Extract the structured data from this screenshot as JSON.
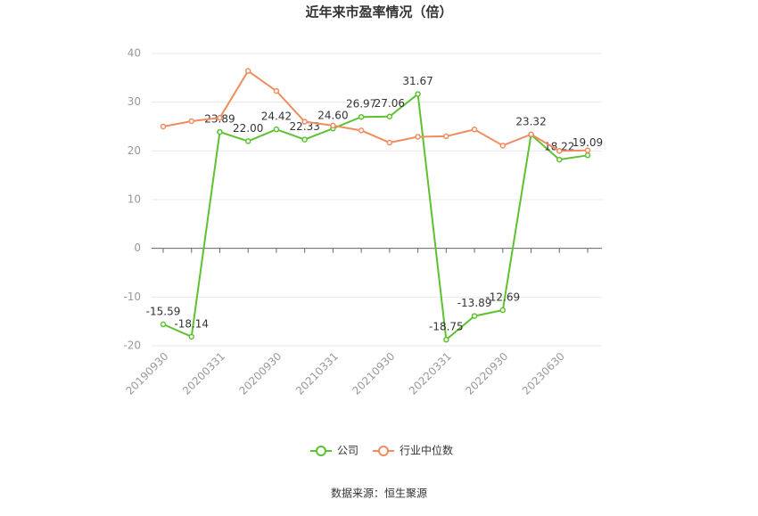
{
  "chart_data": {
    "type": "line",
    "title": "近年来市盈率情况（倍）",
    "categories": [
      "20190930",
      null,
      "20200331",
      null,
      "20200930",
      null,
      "20210331",
      null,
      "20210930",
      null,
      "20220331",
      null,
      "20220930",
      null,
      "20230630",
      null
    ],
    "series": [
      {
        "name": "公司",
        "color": "#5dc230",
        "values": [
          -15.59,
          -18.14,
          23.89,
          22.0,
          24.42,
          22.33,
          24.6,
          26.97,
          27.06,
          31.67,
          -18.75,
          -13.89,
          -12.69,
          23.32,
          18.22,
          19.09
        ],
        "value_labels": [
          "-15.59",
          "-18.14",
          "23.89",
          "22.00",
          "24.42",
          "22.33",
          "24.60",
          "26.97",
          "27.06",
          "31.67",
          "-18.75",
          "-13.89",
          "-12.69",
          "23.32",
          "18.22",
          "19.09"
        ]
      },
      {
        "name": "行业中位数",
        "color": "#f08c5e",
        "values": [
          25.0,
          26.1,
          26.8,
          36.4,
          32.3,
          26.0,
          25.2,
          24.2,
          21.7,
          22.9,
          23.0,
          24.4,
          21.1,
          23.4,
          20.0,
          20.1
        ]
      }
    ],
    "ylim": [
      -20,
      40
    ],
    "yticks": [
      -20,
      -10,
      0,
      10,
      20,
      30,
      40
    ],
    "grid": true,
    "legend": "bottom",
    "source": "数据来源：恒生聚源"
  }
}
